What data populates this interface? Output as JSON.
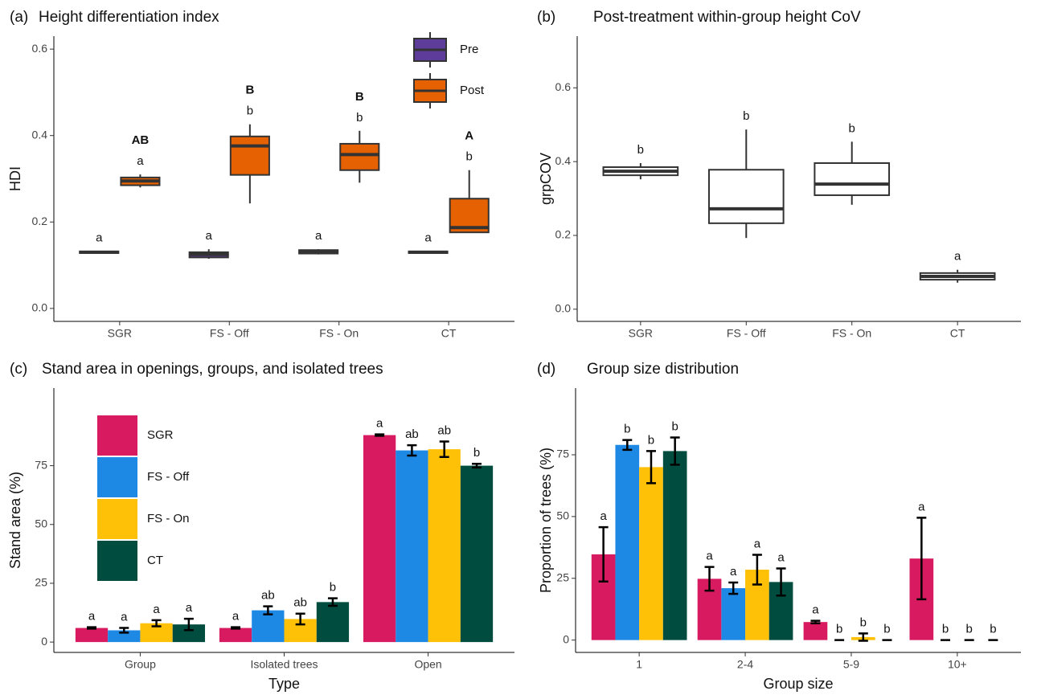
{
  "chart_data": [
    {
      "type": "boxplot",
      "panel_label": "(a)",
      "title": "Height differentiation index",
      "y_label": "HDI",
      "categories": [
        "SGR",
        "FS - Off",
        "FS - On",
        "CT"
      ],
      "ylim": [
        -0.03,
        0.63
      ],
      "yticks": [
        {
          "value": 0,
          "label": "0.0"
        },
        0.2,
        0.4,
        0.6
      ],
      "legend": "top-right",
      "series": [
        {
          "name": "Pre",
          "color": "#5e3c99",
          "letters": [
            "a",
            "a",
            "a",
            "a"
          ],
          "boxes": [
            {
              "min": 0.127,
              "q1": 0.128,
              "median": 0.13,
              "q3": 0.132,
              "max": 0.133
            },
            {
              "min": 0.115,
              "q1": 0.118,
              "median": 0.125,
              "q3": 0.13,
              "max": 0.137
            },
            {
              "min": 0.125,
              "q1": 0.127,
              "median": 0.131,
              "q3": 0.135,
              "max": 0.137
            },
            {
              "min": 0.127,
              "q1": 0.128,
              "median": 0.13,
              "q3": 0.132,
              "max": 0.133
            }
          ]
        },
        {
          "name": "Post",
          "color": "#e66101",
          "letters": [
            "a",
            "b",
            "b",
            "b"
          ],
          "boxes": [
            {
              "min": 0.28,
              "q1": 0.285,
              "median": 0.295,
              "q3": 0.303,
              "max": 0.31
            },
            {
              "min": 0.243,
              "q1": 0.309,
              "median": 0.376,
              "q3": 0.398,
              "max": 0.426
            },
            {
              "min": 0.291,
              "q1": 0.32,
              "median": 0.356,
              "q3": 0.381,
              "max": 0.411
            },
            {
              "min": 0.176,
              "q1": 0.176,
              "median": 0.187,
              "q3": 0.254,
              "max": 0.32
            }
          ]
        }
      ],
      "group_letters": [
        "AB",
        "B",
        "B",
        "A"
      ]
    },
    {
      "type": "boxplot",
      "panel_label": "(b)",
      "title": "Post-treatment within-group height CoV",
      "y_label": "grpCOV",
      "categories": [
        "SGR",
        "FS - Off",
        "FS - On",
        "CT"
      ],
      "ylim": [
        -0.033,
        0.74
      ],
      "yticks": [
        {
          "value": 0,
          "label": "0.0"
        },
        0.2,
        0.4,
        0.6
      ],
      "legend": "none",
      "series": [
        {
          "color": "#ffffff",
          "letters": [
            "b",
            "b",
            "b",
            "a"
          ],
          "boxes": [
            {
              "min": 0.352,
              "q1": 0.363,
              "median": 0.374,
              "q3": 0.385,
              "max": 0.396
            },
            {
              "min": 0.193,
              "q1": 0.233,
              "median": 0.272,
              "q3": 0.378,
              "max": 0.487
            },
            {
              "min": 0.283,
              "q1": 0.309,
              "median": 0.339,
              "q3": 0.396,
              "max": 0.454
            },
            {
              "min": 0.072,
              "q1": 0.08,
              "median": 0.089,
              "q3": 0.098,
              "max": 0.107
            }
          ]
        }
      ]
    },
    {
      "type": "bar",
      "panel_label": "(c)",
      "title": "Stand area in openings, groups, and isolated trees",
      "x_label": "Type",
      "y_label": "Stand area (%)",
      "categories": [
        "Group",
        "Isolated trees",
        "Open"
      ],
      "ylim": [
        -4.4,
        108
      ],
      "yticks": [
        0,
        25,
        50,
        75
      ],
      "legend": "top-left",
      "series": [
        {
          "name": "SGR",
          "color": "#d81b60",
          "values": [
            6,
            6,
            88
          ],
          "errors": [
            0.3,
            0.3,
            0.3
          ],
          "letters": [
            "a",
            "a",
            "a"
          ]
        },
        {
          "name": "FS - Off",
          "color": "#1e88e5",
          "values": [
            5,
            13.5,
            81.5
          ],
          "errors": [
            1,
            1.7,
            2.2
          ],
          "letters": [
            "a",
            "ab",
            "ab"
          ]
        },
        {
          "name": "FS - On",
          "color": "#ffc107",
          "values": [
            8,
            9.8,
            82
          ],
          "errors": [
            1.3,
            2.3,
            3.3
          ],
          "letters": [
            "a",
            "ab",
            "ab"
          ]
        },
        {
          "name": "CT",
          "color": "#004d40",
          "values": [
            7.5,
            17,
            75
          ],
          "errors": [
            2.4,
            1.6,
            0.8
          ],
          "letters": [
            "a",
            "b",
            "b"
          ]
        }
      ]
    },
    {
      "type": "bar",
      "panel_label": "(d)",
      "title": "Group size distribution",
      "x_label": "Group size",
      "y_label": "Proportion of trees (%)",
      "categories": [
        "1",
        "2-4",
        "5-9",
        "10+"
      ],
      "ylim": [
        -5,
        102
      ],
      "yticks": [
        0,
        25,
        50,
        75
      ],
      "legend": "none",
      "series": [
        {
          "color": "#d81b60",
          "values": [
            34.7,
            24.8,
            7.3,
            33
          ],
          "errors": [
            11,
            4.8,
            0.5,
            16.5
          ],
          "letters": [
            "a",
            "a",
            "a",
            "a"
          ]
        },
        {
          "color": "#1e88e5",
          "values": [
            79,
            21,
            0,
            0
          ],
          "errors": [
            2,
            2.3,
            0,
            0
          ],
          "letters": [
            "b",
            "a",
            "b",
            "b"
          ]
        },
        {
          "color": "#ffc107",
          "values": [
            70,
            28.5,
            1.2,
            0
          ],
          "errors": [
            6.5,
            6,
            1.5,
            0
          ],
          "letters": [
            "b",
            "a",
            "b",
            "b"
          ]
        },
        {
          "color": "#004d40",
          "values": [
            76.5,
            23.5,
            0,
            0
          ],
          "errors": [
            5.5,
            5.5,
            0,
            0
          ],
          "letters": [
            "b",
            "a",
            "b",
            "b"
          ]
        }
      ]
    }
  ]
}
